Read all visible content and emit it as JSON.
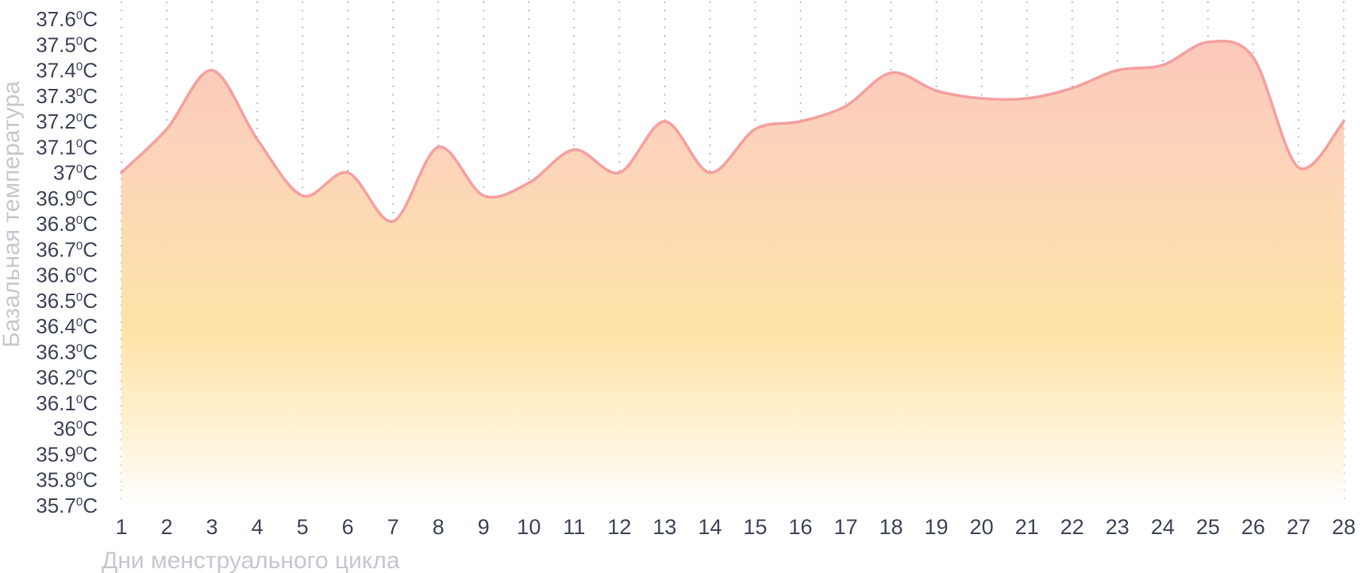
{
  "chart_data": {
    "type": "area",
    "xlabel": "Дни менструального цикла",
    "ylabel": "Базальная температура",
    "unit_sup": "0",
    "unit_suffix": "C",
    "x": [
      1,
      2,
      3,
      4,
      5,
      6,
      7,
      8,
      9,
      10,
      11,
      12,
      13,
      14,
      15,
      16,
      17,
      18,
      19,
      20,
      21,
      22,
      23,
      24,
      25,
      26,
      27,
      28
    ],
    "values": [
      37.0,
      37.17,
      37.4,
      37.13,
      36.91,
      37.0,
      36.81,
      37.1,
      36.91,
      36.96,
      37.09,
      37.0,
      37.2,
      37.0,
      37.17,
      37.2,
      37.26,
      37.39,
      37.32,
      37.29,
      37.29,
      37.33,
      37.4,
      37.42,
      37.51,
      37.45,
      37.02,
      37.2
    ],
    "y_ticks": [
      "37.6",
      "37.5",
      "37.4",
      "37.3",
      "37.2",
      "37.1",
      "37",
      "36.9",
      "36.8",
      "36.7",
      "36.6",
      "36.5",
      "36.4",
      "36.3",
      "36.2",
      "36.1",
      "36",
      "35.9",
      "35.8",
      "35.7"
    ],
    "ylim": [
      35.7,
      37.6
    ],
    "grid": "vertical dotted",
    "colors": {
      "line": "#f5a0a0",
      "fill_top": "#fcc8bb",
      "fill_middle": "#fde3a6",
      "fill_bottom": "#ffffff",
      "tick_text": "#3f4658",
      "axis_title_text": "#c6c8cf",
      "grid": "#9aa0aa"
    }
  }
}
